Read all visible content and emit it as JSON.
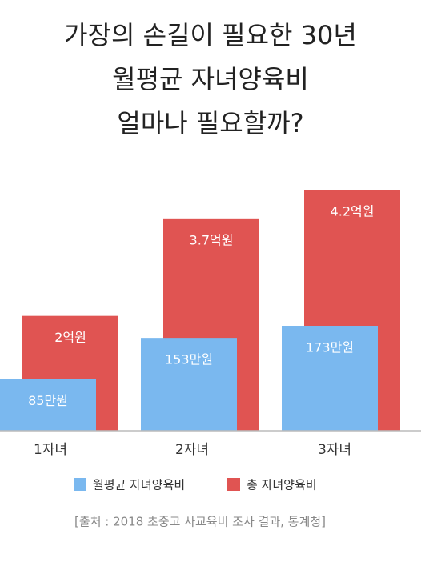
{
  "chart_data": {
    "type": "bar",
    "title": [
      "가장의 손길이 필요한 30년",
      "월평균 자녀양육비",
      "얼마나 필요할까?"
    ],
    "categories": [
      "1자녀",
      "2자녀",
      "3자녀"
    ],
    "series": [
      {
        "name": "월평균 자녀양육비",
        "color": "#7ab8ef",
        "values": [
          85,
          153,
          173
        ],
        "value_labels": [
          "85만원",
          "153만원",
          "173만원"
        ]
      },
      {
        "name": "총 자녀양육비",
        "color": "#e05452",
        "values": [
          2,
          3.7,
          4.2
        ],
        "value_labels": [
          "2억원",
          "3.7억원",
          "4.2억원"
        ]
      }
    ],
    "source": "[출처 : 2018 초중고 사교육비 조사 결과, 통계청]"
  }
}
